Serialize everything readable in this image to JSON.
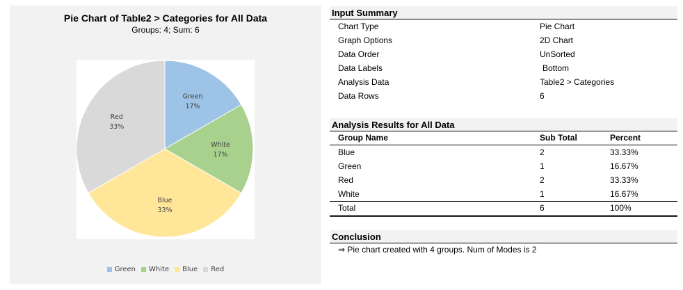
{
  "chart_data": {
    "type": "pie",
    "title": "Pie Chart of Table2 > Categories for All Data",
    "subtitle": "Groups: 4; Sum: 6",
    "slices": [
      {
        "name": "Green",
        "value": 1,
        "label": "17%",
        "color": "#9dc3e6"
      },
      {
        "name": "White",
        "value": 1,
        "label": "17%",
        "color": "#a9d18e"
      },
      {
        "name": "Blue",
        "value": 2,
        "label": "33%",
        "color": "#ffe699"
      },
      {
        "name": "Red",
        "value": 2,
        "label": "33%",
        "color": "#d9d9d9"
      }
    ],
    "legend": [
      "Green",
      "White",
      "Blue",
      "Red"
    ],
    "legend_position": "bottom"
  },
  "input_summary": {
    "title": "Input Summary",
    "rows": [
      {
        "label": "Chart Type",
        "value": "Pie Chart"
      },
      {
        "label": "Graph Options",
        "value": "2D Chart"
      },
      {
        "label": "Data Order",
        "value": "UnSorted"
      },
      {
        "label": "Data Labels",
        "value": "Bottom"
      },
      {
        "label": "Analysis Data",
        "value": "Table2 > Categories"
      },
      {
        "label": "Data Rows",
        "value": "6"
      }
    ]
  },
  "analysis_results": {
    "title": "Analysis Results for All Data",
    "headers": [
      "Group Name",
      "Sub Total",
      "Percent"
    ],
    "rows": [
      [
        "Blue",
        "2",
        "33.33%"
      ],
      [
        "Green",
        "1",
        "16.67%"
      ],
      [
        "Red",
        "2",
        "33.33%"
      ],
      [
        "White",
        "1",
        "16.67%"
      ]
    ],
    "total": [
      "Total",
      "6",
      "100%"
    ]
  },
  "conclusion": {
    "title": "Conclusion",
    "text": "⇒ Pie chart created with 4 groups. Num of Modes is 2"
  }
}
